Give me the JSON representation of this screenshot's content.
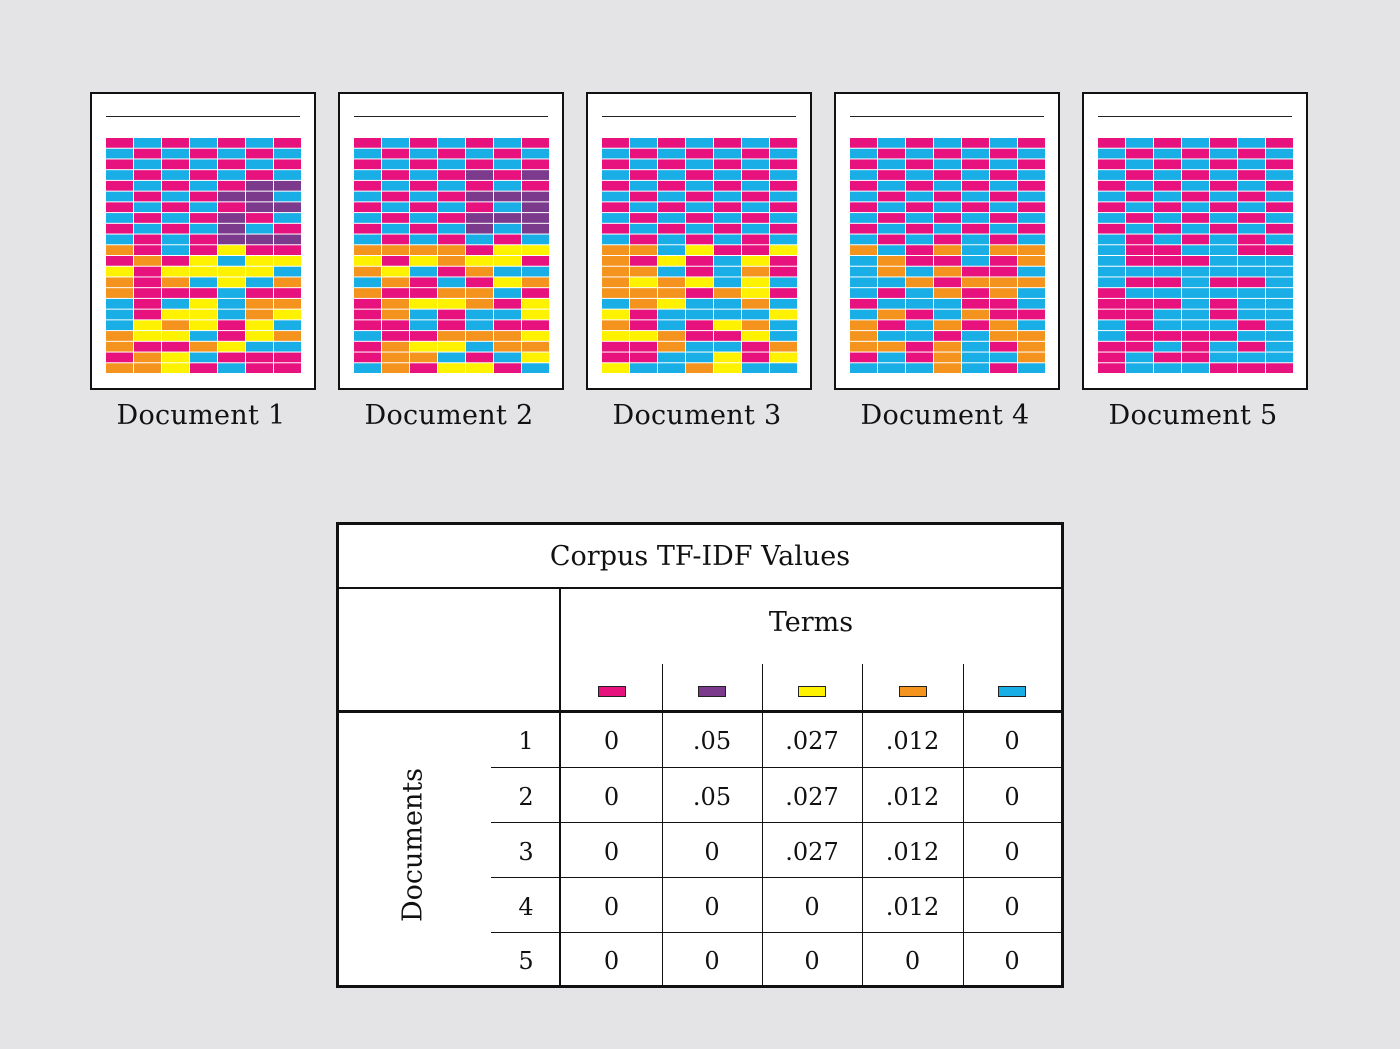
{
  "documents": [
    {
      "label": "Document 1",
      "term_mix": [
        "pink",
        "purple",
        "yellow",
        "orange",
        "cyan"
      ]
    },
    {
      "label": "Document 2",
      "term_mix": [
        "pink",
        "purple",
        "yellow",
        "orange",
        "cyan"
      ]
    },
    {
      "label": "Document 3",
      "term_mix": [
        "pink",
        "yellow",
        "orange",
        "cyan"
      ]
    },
    {
      "label": "Document 4",
      "term_mix": [
        "pink",
        "orange",
        "cyan"
      ]
    },
    {
      "label": "Document 5",
      "term_mix": [
        "pink",
        "cyan"
      ]
    }
  ],
  "colors": {
    "pink": "#e8127f",
    "purple": "#7c3a8c",
    "yellow": "#fff200",
    "orange": "#f4931e",
    "cyan": "#1aaee6"
  },
  "table": {
    "title": "Corpus TF-IDF Values",
    "terms_label": "Terms",
    "documents_label": "Documents",
    "term_colors": [
      "pink",
      "purple",
      "yellow",
      "orange",
      "cyan"
    ],
    "rows": [
      {
        "doc": "1",
        "values": [
          "0",
          ".05",
          ".027",
          ".012",
          "0"
        ]
      },
      {
        "doc": "2",
        "values": [
          "0",
          ".05",
          ".027",
          ".012",
          "0"
        ]
      },
      {
        "doc": "3",
        "values": [
          "0",
          "0",
          ".027",
          ".012",
          "0"
        ]
      },
      {
        "doc": "4",
        "values": [
          "0",
          "0",
          "0",
          ".012",
          "0"
        ]
      },
      {
        "doc": "5",
        "values": [
          "0",
          "0",
          "0",
          "0",
          "0"
        ]
      }
    ]
  }
}
